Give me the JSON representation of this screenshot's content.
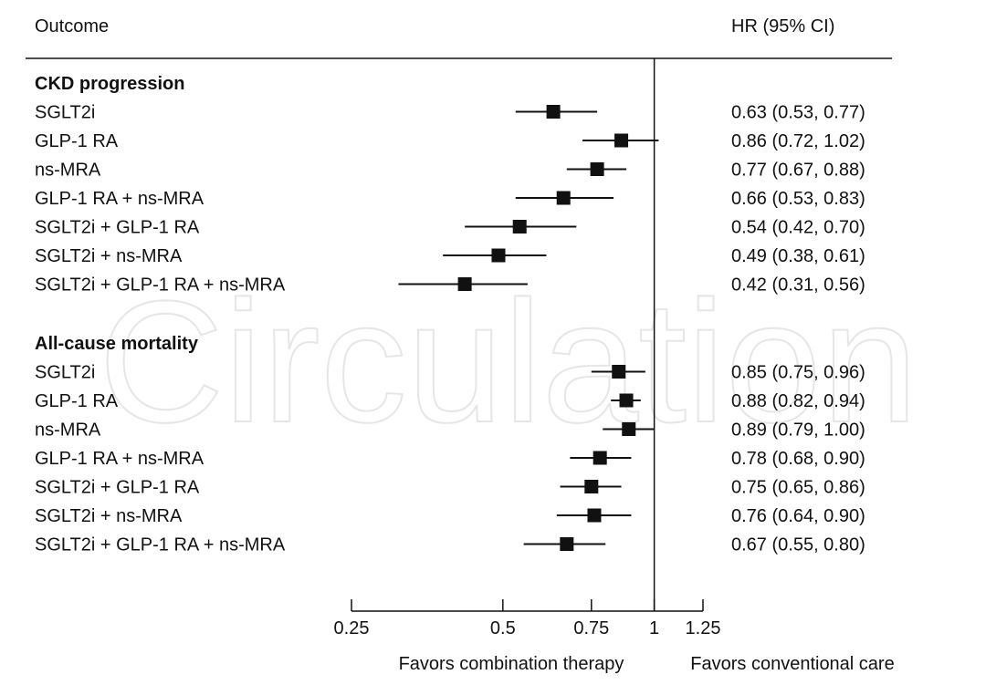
{
  "header": {
    "outcome_label": "Outcome",
    "hr_label": "HR (95% CI)"
  },
  "watermark": "Circulation",
  "colors": {
    "marker": "#111111",
    "grid": "#111111",
    "watermark": "#e6e6e6"
  },
  "chart_data": {
    "type": "forest",
    "xscale": "log",
    "xlim": [
      0.25,
      1.25
    ],
    "reference_line": 1,
    "xticks": [
      0.25,
      0.5,
      0.75,
      1,
      1.25
    ],
    "xtick_labels": [
      "0.25",
      "0.5",
      "0.75",
      "1",
      "1.25"
    ],
    "left_annotation": "Favors combination therapy",
    "right_annotation": "Favors conventional care",
    "groups": [
      {
        "title": "CKD progression",
        "rows": [
          {
            "label": "SGLT2i",
            "hr": 0.63,
            "lo": 0.53,
            "hi": 0.77,
            "text": "0.63 (0.53, 0.77)"
          },
          {
            "label": "GLP-1 RA",
            "hr": 0.86,
            "lo": 0.72,
            "hi": 1.02,
            "text": "0.86 (0.72, 1.02)"
          },
          {
            "label": "ns-MRA",
            "hr": 0.77,
            "lo": 0.67,
            "hi": 0.88,
            "text": "0.77 (0.67, 0.88)"
          },
          {
            "label": "GLP-1 RA + ns-MRA",
            "hr": 0.66,
            "lo": 0.53,
            "hi": 0.83,
            "text": "0.66 (0.53, 0.83)"
          },
          {
            "label": "SGLT2i + GLP-1 RA",
            "hr": 0.54,
            "lo": 0.42,
            "hi": 0.7,
            "text": "0.54 (0.42, 0.70)"
          },
          {
            "label": "SGLT2i + ns-MRA",
            "hr": 0.49,
            "lo": 0.38,
            "hi": 0.61,
            "text": "0.49 (0.38, 0.61)"
          },
          {
            "label": "SGLT2i + GLP-1 RA + ns-MRA",
            "hr": 0.42,
            "lo": 0.31,
            "hi": 0.56,
            "text": "0.42 (0.31, 0.56)"
          }
        ]
      },
      {
        "title": "All-cause mortality",
        "rows": [
          {
            "label": "SGLT2i",
            "hr": 0.85,
            "lo": 0.75,
            "hi": 0.96,
            "text": "0.85 (0.75, 0.96)"
          },
          {
            "label": "GLP-1 RA",
            "hr": 0.88,
            "lo": 0.82,
            "hi": 0.94,
            "text": "0.88 (0.82, 0.94)"
          },
          {
            "label": "ns-MRA",
            "hr": 0.89,
            "lo": 0.79,
            "hi": 1.0,
            "text": "0.89 (0.79, 1.00)"
          },
          {
            "label": "GLP-1 RA + ns-MRA",
            "hr": 0.78,
            "lo": 0.68,
            "hi": 0.9,
            "text": "0.78 (0.68, 0.90)"
          },
          {
            "label": "SGLT2i + GLP-1 RA",
            "hr": 0.75,
            "lo": 0.65,
            "hi": 0.86,
            "text": "0.75 (0.65, 0.86)"
          },
          {
            "label": "SGLT2i + ns-MRA",
            "hr": 0.76,
            "lo": 0.64,
            "hi": 0.9,
            "text": "0.76 (0.64, 0.90)"
          },
          {
            "label": "SGLT2i + GLP-1 RA + ns-MRA",
            "hr": 0.67,
            "lo": 0.55,
            "hi": 0.8,
            "text": "0.67 (0.55, 0.80)"
          }
        ]
      }
    ]
  }
}
